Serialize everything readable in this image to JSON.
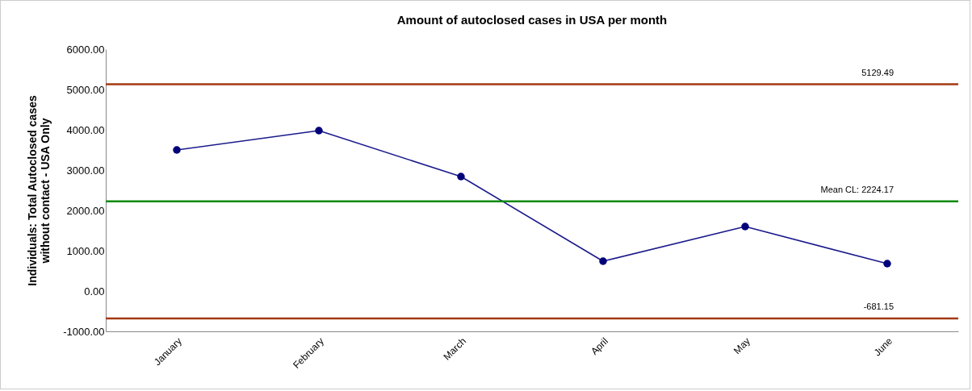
{
  "chart_data": {
    "type": "line",
    "title": "Amount of autoclosed cases in USA per month",
    "ylabel": "Individuals: Total Autoclosed cases without contact - USA Only",
    "categories": [
      "January",
      "February",
      "March",
      "April",
      "May",
      "June"
    ],
    "series": [
      {
        "color": "#1a1a8c",
        "values": [
          3500,
          3980,
          2840,
          740,
          1600,
          680
        ]
      }
    ],
    "ylim": [
      -1000,
      6000
    ],
    "yticks": [
      {
        "value": -1000,
        "label": "-1000.00"
      },
      {
        "value": 0,
        "label": "0.00"
      },
      {
        "value": 1000,
        "label": "1000.00"
      },
      {
        "value": 2000,
        "label": "2000.00"
      },
      {
        "value": 3000,
        "label": "3000.00"
      },
      {
        "value": 4000,
        "label": "4000.00"
      },
      {
        "value": 5000,
        "label": "5000.00"
      },
      {
        "value": 6000,
        "label": "6000.00"
      }
    ],
    "ref_lines": [
      {
        "axis": "y",
        "value": 5129.49,
        "label": "5129.49",
        "color": "#a33a12"
      },
      {
        "axis": "y",
        "value": 2224.17,
        "label": "Mean CL: 2224.17",
        "color": "#0a8a0a"
      },
      {
        "axis": "y",
        "value": -681.15,
        "label": "-681.15",
        "color": "#a33a12"
      }
    ],
    "marker": "circle",
    "grid": false,
    "line_style": "solid"
  }
}
